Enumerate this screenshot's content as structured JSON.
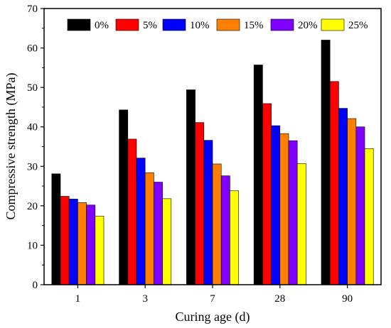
{
  "chart_data": {
    "type": "bar",
    "title": "",
    "xlabel": "Curing age (d)",
    "ylabel": "Compressive strength (MPa)",
    "ylim": [
      0,
      70
    ],
    "yticks": [
      0,
      10,
      20,
      30,
      40,
      50,
      60,
      70
    ],
    "categories": [
      "1",
      "3",
      "7",
      "28",
      "90"
    ],
    "series": [
      {
        "name": "0%",
        "color": "#000000",
        "values": [
          28.1,
          44.3,
          49.4,
          55.7,
          62.0
        ]
      },
      {
        "name": "5%",
        "color": "#ff0000",
        "values": [
          22.4,
          36.9,
          41.1,
          45.9,
          51.5
        ]
      },
      {
        "name": "10%",
        "color": "#0000ff",
        "values": [
          21.7,
          32.1,
          36.6,
          40.3,
          44.7
        ]
      },
      {
        "name": "15%",
        "color": "#ff8000",
        "values": [
          20.8,
          28.4,
          30.6,
          38.3,
          42.1
        ]
      },
      {
        "name": "20%",
        "color": "#8000ff",
        "values": [
          20.2,
          26.0,
          27.6,
          36.5,
          40.0
        ]
      },
      {
        "name": "25%",
        "color": "#ffff00",
        "values": [
          17.4,
          21.8,
          23.8,
          30.7,
          34.5
        ]
      }
    ],
    "legend_position": "top",
    "grid": false
  }
}
